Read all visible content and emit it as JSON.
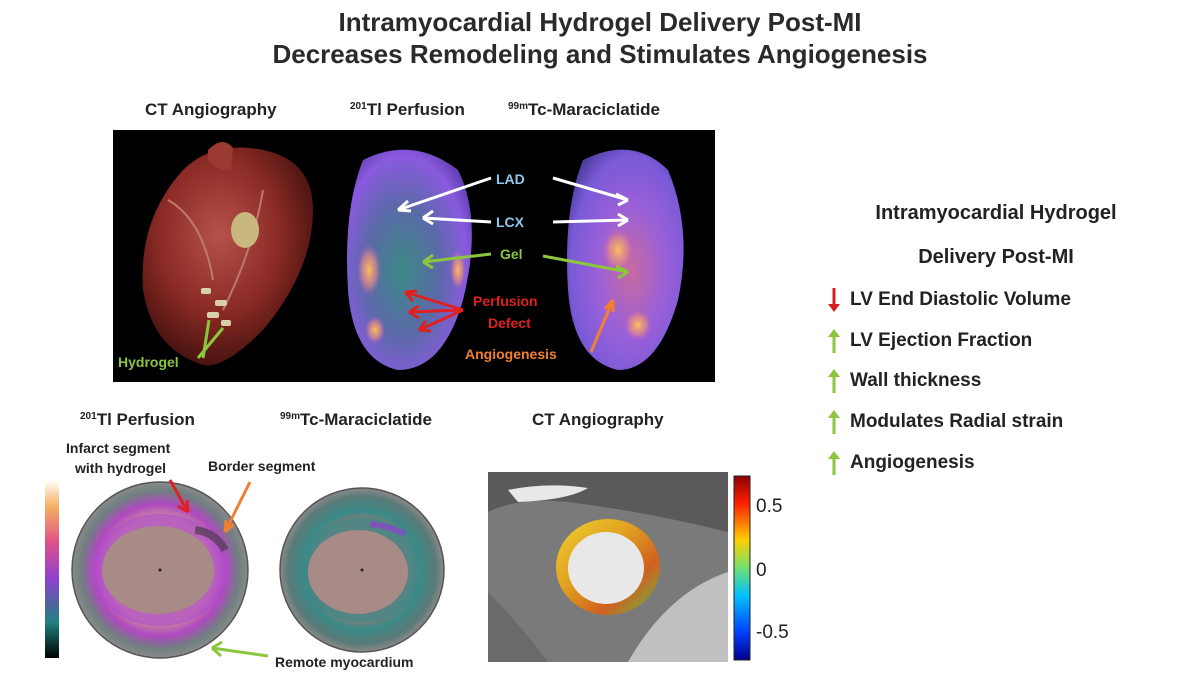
{
  "title": {
    "line1": "Intramyocardial Hydrogel Delivery Post-MI",
    "line2": "Decreases Remodeling and Stimulates Angiogenesis"
  },
  "top_panel": {
    "headers": {
      "ct": "CT Angiography",
      "tl_sup": "201",
      "tl": "Tl Perfusion",
      "tc_sup": "99m",
      "tc": "Tc-Maraciclatide"
    },
    "labels": {
      "hydrogel": "Hydrogel",
      "lad": "LAD",
      "lcx": "LCX",
      "gel": "Gel",
      "perfusion_defect_1": "Perfusion",
      "perfusion_defect_2": "Defect",
      "angiogenesis": "Angiogenesis"
    }
  },
  "bottom_panel": {
    "headers": {
      "tl_sup": "201",
      "tl": "Tl Perfusion",
      "tc_sup": "99m",
      "tc": "Tc-Maraciclatide",
      "ct": "CT Angiography"
    },
    "labels": {
      "infarct_1": "Infarct segment",
      "infarct_2": "with hydrogel",
      "border": "Border segment",
      "remote": "Remote myocardium"
    },
    "colorbar_ticks": [
      "0.5",
      "0",
      "-0.5"
    ]
  },
  "summary": {
    "title_line1": "Intramyocardial Hydrogel",
    "title_line2": "Delivery Post-MI",
    "effects": [
      {
        "direction": "down",
        "color": "#d42020",
        "text": "LV End Diastolic Volume"
      },
      {
        "direction": "up",
        "color": "#8cc63f",
        "text": "LV Ejection Fraction"
      },
      {
        "direction": "up",
        "color": "#8cc63f",
        "text": "Wall thickness"
      },
      {
        "direction": "up",
        "color": "#8cc63f",
        "text": "Modulates Radial strain"
      },
      {
        "direction": "up",
        "color": "#8cc63f",
        "text": "Angiogenesis"
      }
    ]
  }
}
